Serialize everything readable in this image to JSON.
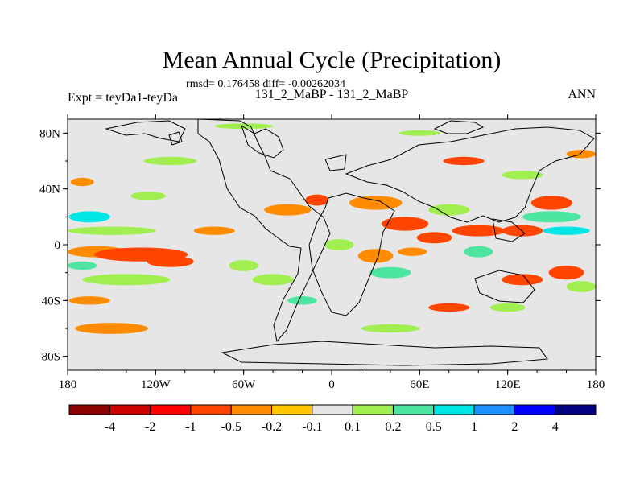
{
  "chart_data": {
    "type": "heatmap",
    "title": "Mean Annual Cycle (Precipitation)",
    "stats_line": "rmsd= 0.176458 diff= -0.00262034",
    "left_label": "Expt = teyDa1-teyDa",
    "center_label": "131_2_MaBP - 131_2_MaBP",
    "right_label": "ANN",
    "xlim": [
      -180,
      180
    ],
    "ylim": [
      -90,
      90
    ],
    "x_ticks": [
      {
        "value": -180,
        "label": "180"
      },
      {
        "value": -120,
        "label": "120W"
      },
      {
        "value": -60,
        "label": "60W"
      },
      {
        "value": 0,
        "label": "0"
      },
      {
        "value": 60,
        "label": "60E"
      },
      {
        "value": 120,
        "label": "120E"
      },
      {
        "value": 180,
        "label": "180"
      }
    ],
    "y_ticks": [
      {
        "value": 80,
        "label": "80N"
      },
      {
        "value": 40,
        "label": "40N"
      },
      {
        "value": 0,
        "label": "0"
      },
      {
        "value": -40,
        "label": "40S"
      },
      {
        "value": -80,
        "label": "80S"
      }
    ],
    "colorbar": {
      "colors": [
        "#8b0000",
        "#cd0000",
        "#ff0000",
        "#ff4500",
        "#ff8c00",
        "#ffc800",
        "#e6e6e6",
        "#a0ee50",
        "#4de6a0",
        "#00e6e6",
        "#1e90ff",
        "#0000ff",
        "#000080"
      ],
      "labels": [
        "-4",
        "-2",
        "-1",
        "-0.5",
        "-0.2",
        "-0.1",
        "0.1",
        "0.2",
        "0.5",
        "1",
        "2",
        "4"
      ]
    },
    "anomaly_patches": [
      {
        "lon": -165,
        "lat": 20,
        "rx": 14,
        "ry": 4,
        "level": 9
      },
      {
        "lon": -150,
        "lat": 10,
        "rx": 30,
        "ry": 3,
        "level": 7
      },
      {
        "lon": -160,
        "lat": -5,
        "rx": 20,
        "ry": 4,
        "level": 4
      },
      {
        "lon": -130,
        "lat": -7,
        "rx": 32,
        "ry": 5,
        "level": 3
      },
      {
        "lon": -110,
        "lat": -12,
        "rx": 16,
        "ry": 4,
        "level": 3
      },
      {
        "lon": -140,
        "lat": -25,
        "rx": 30,
        "ry": 4,
        "level": 7
      },
      {
        "lon": -165,
        "lat": -40,
        "rx": 14,
        "ry": 3,
        "level": 4
      },
      {
        "lon": -150,
        "lat": -60,
        "rx": 25,
        "ry": 4,
        "level": 4
      },
      {
        "lon": -125,
        "lat": 35,
        "rx": 12,
        "ry": 3,
        "level": 7
      },
      {
        "lon": -170,
        "lat": 45,
        "rx": 8,
        "ry": 3,
        "level": 4
      },
      {
        "lon": -110,
        "lat": 60,
        "rx": 18,
        "ry": 3,
        "level": 7
      },
      {
        "lon": -60,
        "lat": 85,
        "rx": 20,
        "ry": 2,
        "level": 7
      },
      {
        "lon": -80,
        "lat": 10,
        "rx": 14,
        "ry": 3,
        "level": 4
      },
      {
        "lon": -60,
        "lat": -15,
        "rx": 10,
        "ry": 4,
        "level": 7
      },
      {
        "lon": -40,
        "lat": -25,
        "rx": 14,
        "ry": 4,
        "level": 7
      },
      {
        "lon": -30,
        "lat": 25,
        "rx": 16,
        "ry": 4,
        "level": 4
      },
      {
        "lon": -20,
        "lat": -40,
        "rx": 10,
        "ry": 3,
        "level": 8
      },
      {
        "lon": -10,
        "lat": 32,
        "rx": 8,
        "ry": 4,
        "level": 3
      },
      {
        "lon": 5,
        "lat": 0,
        "rx": 10,
        "ry": 4,
        "level": 7
      },
      {
        "lon": 30,
        "lat": -8,
        "rx": 12,
        "ry": 5,
        "level": 4
      },
      {
        "lon": 40,
        "lat": -20,
        "rx": 14,
        "ry": 4,
        "level": 8
      },
      {
        "lon": 30,
        "lat": 30,
        "rx": 18,
        "ry": 5,
        "level": 4
      },
      {
        "lon": 50,
        "lat": 15,
        "rx": 16,
        "ry": 5,
        "level": 3
      },
      {
        "lon": 55,
        "lat": -5,
        "rx": 10,
        "ry": 3,
        "level": 4
      },
      {
        "lon": 70,
        "lat": 5,
        "rx": 12,
        "ry": 4,
        "level": 3
      },
      {
        "lon": 80,
        "lat": 25,
        "rx": 14,
        "ry": 4,
        "level": 7
      },
      {
        "lon": 100,
        "lat": 10,
        "rx": 18,
        "ry": 4,
        "level": 3
      },
      {
        "lon": 100,
        "lat": -5,
        "rx": 10,
        "ry": 4,
        "level": 8
      },
      {
        "lon": 130,
        "lat": 10,
        "rx": 14,
        "ry": 4,
        "level": 3
      },
      {
        "lon": 150,
        "lat": 30,
        "rx": 14,
        "ry": 5,
        "level": 3
      },
      {
        "lon": 150,
        "lat": 20,
        "rx": 20,
        "ry": 4,
        "level": 8
      },
      {
        "lon": 160,
        "lat": 10,
        "rx": 16,
        "ry": 3,
        "level": 9
      },
      {
        "lon": 130,
        "lat": -25,
        "rx": 14,
        "ry": 4,
        "level": 3
      },
      {
        "lon": 160,
        "lat": -20,
        "rx": 12,
        "ry": 5,
        "level": 3
      },
      {
        "lon": 170,
        "lat": -30,
        "rx": 10,
        "ry": 4,
        "level": 7
      },
      {
        "lon": 120,
        "lat": -45,
        "rx": 12,
        "ry": 3,
        "level": 7
      },
      {
        "lon": 80,
        "lat": -45,
        "rx": 14,
        "ry": 3,
        "level": 3
      },
      {
        "lon": 40,
        "lat": -60,
        "rx": 20,
        "ry": 3,
        "level": 7
      },
      {
        "lon": 130,
        "lat": 50,
        "rx": 14,
        "ry": 3,
        "level": 7
      },
      {
        "lon": 90,
        "lat": 60,
        "rx": 14,
        "ry": 3,
        "level": 3
      },
      {
        "lon": 60,
        "lat": 80,
        "rx": 14,
        "ry": 2,
        "level": 7
      },
      {
        "lon": 170,
        "lat": 65,
        "rx": 10,
        "ry": 3,
        "level": 4
      },
      {
        "lon": -170,
        "lat": -15,
        "rx": 10,
        "ry": 3,
        "level": 8
      }
    ]
  }
}
